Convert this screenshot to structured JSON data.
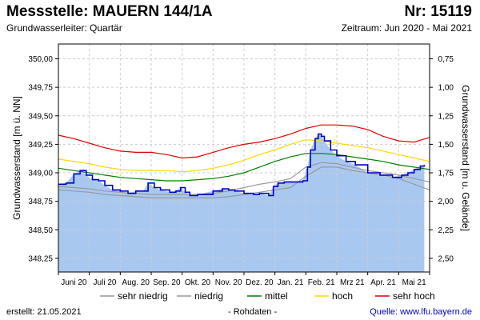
{
  "header": {
    "title": "Messstelle: MAUERN 144/1A",
    "number": "Nr: 15119",
    "aquifer": "Grundwasserleiter: Quartär",
    "period": "Zeitraum: Jun 2020 - Mai 2021"
  },
  "footer": {
    "created": "erstellt:  21.05.2021",
    "rawdata": "- Rohdaten -",
    "source": "Quelle:  www.lfu.bayern.de"
  },
  "chart_data": {
    "type": "area",
    "ylabel_left": "Grundwasserstand [m ü. NN]",
    "ylabel_right": "Grundwasserstand [m u. Gelände]",
    "ylim": [
      348.13,
      350.13
    ],
    "yticks_left": [
      "350,00",
      "349,75",
      "349,50",
      "349,25",
      "349,00",
      "348,75",
      "348,50",
      "348,25"
    ],
    "yticks_left_values": [
      350.0,
      349.75,
      349.5,
      349.25,
      349.0,
      348.75,
      348.5,
      348.25
    ],
    "yticks_right": [
      "0,75",
      "1,00",
      "1,25",
      "1,50",
      "1,75",
      "2,00",
      "2,25",
      "2,50"
    ],
    "yticks_right_values": [
      0.75,
      1.0,
      1.25,
      1.5,
      1.75,
      2.0,
      2.25,
      2.5
    ],
    "surface_level": 350.75,
    "months": [
      "Juni 20",
      "Juli 20",
      "Aug. 20",
      "Sep. 20",
      "Okt. 20",
      "Nov. 20",
      "Dez. 20",
      "Jan. 21",
      "Feb. 21",
      "Mrz 21",
      "Apr. 21",
      "Mai 21"
    ],
    "x_range_months": [
      0,
      12
    ],
    "grid": true,
    "legend_position": "bottom",
    "series": [
      {
        "name": "sehr niedrig",
        "color": "#999999",
        "x": [
          0,
          0.5,
          1,
          1.5,
          2,
          2.5,
          3,
          3.5,
          4,
          4.5,
          5,
          5.5,
          6,
          6.5,
          7,
          7.5,
          8,
          8.5,
          9,
          9.5,
          10,
          10.5,
          11,
          11.5,
          12
        ],
        "y": [
          348.85,
          348.84,
          348.83,
          348.81,
          348.8,
          348.79,
          348.78,
          348.78,
          348.78,
          348.78,
          348.78,
          348.79,
          348.81,
          348.83,
          348.85,
          348.87,
          348.97,
          349.05,
          349.05,
          349.02,
          349.0,
          348.98,
          348.95,
          348.9,
          348.85
        ]
      },
      {
        "name": "niedrig",
        "color": "#999999",
        "x": [
          0,
          0.5,
          1,
          1.5,
          2,
          2.5,
          3,
          3.5,
          4,
          4.5,
          5,
          5.5,
          6,
          6.5,
          7,
          7.5,
          8,
          8.5,
          9,
          9.5,
          10,
          10.5,
          11,
          11.5,
          12
        ],
        "y": [
          348.88,
          348.87,
          348.86,
          348.84,
          348.83,
          348.82,
          348.81,
          348.81,
          348.81,
          348.81,
          348.82,
          348.84,
          348.87,
          348.9,
          348.92,
          348.95,
          349.05,
          349.09,
          349.08,
          349.05,
          349.02,
          349.0,
          348.98,
          348.95,
          348.92
        ]
      },
      {
        "name": "mittel",
        "color": "#008000",
        "x": [
          0,
          0.5,
          1,
          1.5,
          2,
          2.5,
          3,
          3.5,
          4,
          4.5,
          5,
          5.5,
          6,
          6.5,
          7,
          7.5,
          8,
          8.5,
          9,
          9.5,
          10,
          10.5,
          11,
          11.5,
          12
        ],
        "y": [
          349.04,
          349.02,
          349.0,
          348.98,
          348.96,
          348.95,
          348.94,
          348.93,
          348.93,
          348.94,
          348.95,
          348.97,
          349.0,
          349.05,
          349.1,
          349.14,
          349.17,
          349.17,
          349.16,
          349.14,
          349.12,
          349.1,
          349.07,
          349.05,
          349.03
        ]
      },
      {
        "name": "hoch",
        "color": "#ffd700",
        "x": [
          0,
          0.5,
          1,
          1.5,
          2,
          2.5,
          3,
          3.5,
          4,
          4.5,
          5,
          5.5,
          6,
          6.5,
          7,
          7.5,
          8,
          8.5,
          9,
          9.5,
          10,
          10.5,
          11,
          11.5,
          12
        ],
        "y": [
          349.12,
          349.1,
          349.08,
          349.05,
          349.03,
          349.02,
          349.02,
          349.02,
          349.01,
          349.02,
          349.04,
          349.07,
          349.11,
          349.16,
          349.2,
          349.25,
          349.29,
          349.28,
          349.26,
          349.24,
          349.22,
          349.19,
          349.16,
          349.13,
          349.1
        ]
      },
      {
        "name": "sehr hoch",
        "color": "#e00000",
        "x": [
          0,
          0.5,
          1,
          1.5,
          2,
          2.5,
          3,
          3.5,
          4,
          4.5,
          5,
          5.5,
          6,
          6.5,
          7,
          7.5,
          8,
          8.5,
          9,
          9.5,
          10,
          10.5,
          11,
          11.5,
          12
        ],
        "y": [
          349.33,
          349.3,
          349.26,
          349.22,
          349.19,
          349.18,
          349.18,
          349.16,
          349.13,
          349.14,
          349.18,
          349.22,
          349.25,
          349.27,
          349.3,
          349.34,
          349.39,
          349.42,
          349.42,
          349.41,
          349.38,
          349.32,
          349.28,
          349.27,
          349.31
        ]
      }
    ],
    "measured": {
      "color": "#0000cc",
      "fill": "#a9c8f0",
      "x": [
        0,
        0.25,
        0.5,
        0.7,
        0.9,
        1.1,
        1.3,
        1.5,
        1.75,
        2.0,
        2.25,
        2.5,
        2.75,
        2.9,
        3.1,
        3.3,
        3.6,
        3.8,
        3.95,
        4.1,
        4.25,
        4.5,
        5.0,
        5.3,
        5.5,
        5.7,
        6.0,
        6.3,
        6.5,
        6.8,
        6.95,
        7.1,
        7.3,
        7.6,
        7.9,
        8.05,
        8.15,
        8.3,
        8.4,
        8.5,
        8.6,
        8.8,
        9.0,
        9.3,
        9.6,
        10.0,
        10.4,
        10.8,
        11.1,
        11.3,
        11.5,
        11.7,
        11.83
      ],
      "y": [
        348.9,
        348.91,
        348.99,
        349.02,
        348.98,
        348.94,
        348.93,
        348.89,
        348.85,
        348.84,
        348.82,
        348.84,
        348.84,
        348.91,
        348.87,
        348.85,
        348.83,
        348.84,
        348.87,
        348.83,
        348.8,
        348.81,
        348.84,
        348.86,
        348.85,
        348.84,
        348.82,
        348.81,
        348.82,
        348.8,
        348.88,
        348.91,
        348.92,
        348.92,
        348.93,
        349.05,
        349.2,
        349.3,
        349.34,
        349.32,
        349.28,
        349.2,
        349.15,
        349.1,
        349.07,
        349.0,
        348.98,
        348.96,
        348.98,
        349.0,
        349.03,
        349.06,
        349.07
      ]
    }
  }
}
